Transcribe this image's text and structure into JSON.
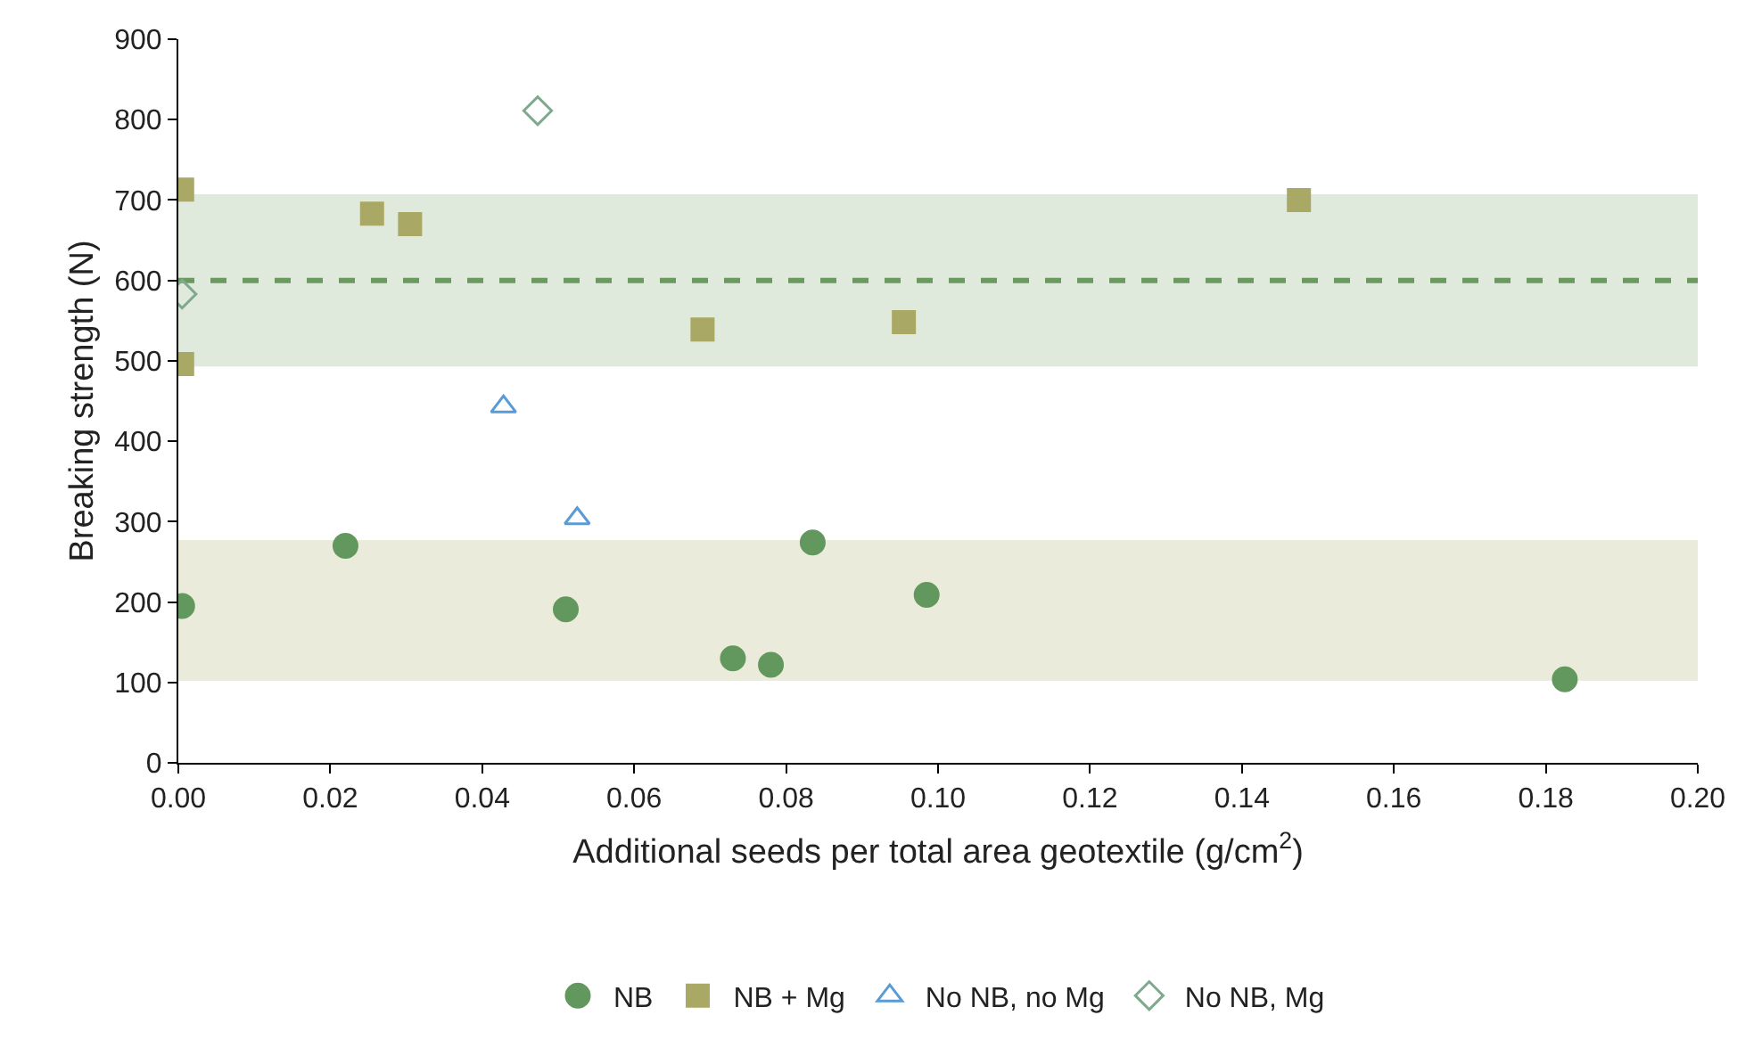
{
  "chart_data": {
    "type": "scatter",
    "xlabel": "Additional seeds per total area geotextile (g/cm$^{2}$)",
    "ylabel": "Breaking strength (N)",
    "xlim": [
      0,
      0.2
    ],
    "xticks": [
      {
        "value": 0,
        "label": "0.00"
      },
      {
        "value": 0.02,
        "label": "0.02"
      },
      {
        "value": 0.04,
        "label": "0.04"
      },
      {
        "value": 0.06,
        "label": "0.06"
      },
      {
        "value": 0.08,
        "label": "0.08"
      },
      {
        "value": 0.1,
        "label": "0.10"
      },
      {
        "value": 0.12,
        "label": "0.12"
      },
      {
        "value": 0.14,
        "label": "0.14"
      },
      {
        "value": 0.16,
        "label": "0.16"
      },
      {
        "value": 0.18,
        "label": "0.18"
      },
      {
        "value": 0.2,
        "label": "0.20"
      }
    ],
    "ylim": [
      0,
      900
    ],
    "yticks": [
      0,
      100,
      200,
      300,
      400,
      500,
      600,
      700,
      800,
      900
    ],
    "grid": false,
    "legend": "bottom",
    "series": [
      {
        "name": "NB",
        "color": "#62985e",
        "marker": "circle",
        "x": [
          0.0005,
          0.022,
          0.051,
          0.073,
          0.078,
          0.0835,
          0.0985,
          0.1825
        ],
        "values": [
          195,
          270,
          191,
          130,
          122,
          274,
          209,
          104
        ]
      },
      {
        "name": "NB + Mg",
        "color": "#a9a864",
        "marker": "square",
        "x": [
          0.0005,
          0.0005,
          0.0255,
          0.0305,
          0.069,
          0.0955,
          0.1475
        ],
        "values": [
          713,
          496,
          683,
          670,
          539,
          548,
          700
        ]
      },
      {
        "name": "No NB, no Mg",
        "color": "#5b9bd5",
        "marker": "triangle",
        "x": [
          0.0428,
          0.0525
        ],
        "values": [
          443,
          304
        ]
      },
      {
        "name": "No NB, Mg",
        "color": "#7fa98f",
        "marker": "diamond",
        "x": [
          0.0005,
          0.0473
        ],
        "values": [
          583,
          811
        ]
      }
    ],
    "ref_lines": [
      {
        "axis": "y",
        "value": 600,
        "color": "#6a9a5f",
        "line_style": "dashed"
      }
    ],
    "bands": [
      {
        "axis": "y",
        "from": 493,
        "to": 707,
        "color": "#dfe9dc"
      },
      {
        "axis": "y",
        "from": 102,
        "to": 277,
        "color": "#ebebdc"
      }
    ]
  }
}
